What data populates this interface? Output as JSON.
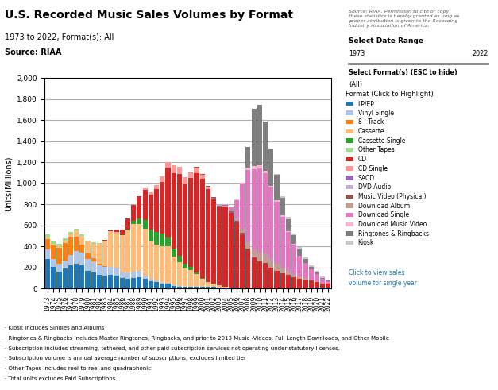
{
  "chart_data": {
    "type": "bar",
    "stacked": true,
    "title": "U.S. Recorded Music Sales Volumes by Format",
    "subtitle": "1973 to 2022, Format(s): All",
    "ylabel": "Units(Millions)",
    "annotations": [
      "Source: RIAA",
      "Source: RIAA. Permission to cite or copy\nthese statistics is hereby granted as long as\nproper attribution is given to the Recording\nIndustry Association of America.",
      "· Kiosk includes Singles and Albums",
      "· Ringtones & Ringbacks includes Master Ringtones, Ringbacks, and prior to 2013 Music -Videos, Full Length Downloads, and Other Mobile",
      "· Subscription includes streaming, tethered, and other paid subscription services not operating under statutory licenses.",
      "· Subscription volume is annual average number of subscriptions; excludes limited tier",
      "· Other Tapes includes reel-to-reel and quadraphonic",
      "· Total units excludes Paid Subscriptions",
      "Select Date Range",
      "1973",
      "2022",
      "Select Format(s) (ESC to hide)",
      "(All)",
      "Format (Click to Highlight)",
      "Click to view sales",
      "volume for single year"
    ],
    "categories": [
      "1973",
      "1974",
      "1975",
      "1976",
      "1977",
      "1978",
      "1979",
      "1980",
      "1981",
      "1982",
      "1983",
      "1984",
      "1985",
      "1986",
      "1987",
      "1988",
      "1989",
      "1990",
      "1991",
      "1992",
      "1993",
      "1994",
      "1995",
      "1996",
      "1997",
      "1998",
      "1999",
      "2000",
      "2001",
      "2002",
      "2003",
      "2004",
      "2005",
      "2006",
      "2007",
      "2008",
      "2009",
      "2010",
      "2011",
      "2012",
      "2013",
      "2014",
      "2015",
      "2016",
      "2017",
      "2018",
      "2019",
      "2020",
      "2021",
      "2022"
    ],
    "series": [
      {
        "name": "LP/EP",
        "color": "#1f77b4",
        "values": [
          282,
          204,
          164,
          190,
          220,
          240,
          220,
          170,
          155,
          130,
          125,
          130,
          120,
          100,
          90,
          100,
          110,
          95,
          69,
          60,
          50,
          45,
          25,
          20,
          15,
          15,
          14,
          16,
          16,
          14,
          12,
          10,
          8,
          6,
          5,
          4,
          3,
          2,
          2,
          2,
          2,
          2,
          2,
          2,
          3,
          5,
          6,
          8,
          10,
          12
        ]
      },
      {
        "name": "Vinyl Single",
        "color": "#aec7e8",
        "values": [
          91,
          80,
          70,
          80,
          100,
          120,
          120,
          110,
          105,
          90,
          80,
          75,
          75,
          60,
          55,
          60,
          55,
          28,
          22,
          20,
          15,
          12,
          8,
          6,
          5,
          4,
          3,
          2,
          1,
          1,
          1,
          1,
          1,
          1,
          1,
          1,
          1,
          1,
          1,
          1,
          1,
          1,
          1,
          1,
          1,
          1,
          1,
          1,
          1,
          1
        ]
      },
      {
        "name": "8 - Track",
        "color": "#ff7f0e",
        "values": [
          100,
          125,
          150,
          162,
          165,
          133,
          76,
          55,
          30,
          20,
          10,
          5,
          2,
          1,
          0,
          0,
          0,
          0,
          0,
          0,
          0,
          0,
          0,
          0,
          0,
          0,
          0,
          0,
          0,
          0,
          0,
          0,
          0,
          0,
          0,
          0,
          0,
          0,
          0,
          0,
          0,
          0,
          0,
          0,
          0,
          0,
          0,
          0,
          0,
          0
        ]
      },
      {
        "name": "Cassette",
        "color": "#ffbb78",
        "values": [
          15,
          15,
          16,
          25,
          36,
          61,
          82,
          110,
          137,
          182,
          237,
          332,
          339,
          345,
          410,
          450,
          446,
          442,
          360,
          336,
          340,
          345,
          272,
          225,
          173,
          159,
          124,
          76,
          45,
          31,
          17,
          5,
          2,
          1,
          1,
          0,
          0,
          0,
          0,
          0,
          0,
          0,
          0,
          0,
          0,
          0,
          0,
          0,
          0,
          0
        ]
      },
      {
        "name": "Cassette Single",
        "color": "#2ca02c",
        "values": [
          0,
          0,
          0,
          0,
          0,
          0,
          0,
          0,
          0,
          0,
          0,
          0,
          0,
          0,
          5,
          35,
          55,
          87,
          110,
          120,
          115,
          81,
          70,
          59,
          42,
          26,
          14,
          8,
          3,
          2,
          1,
          0,
          0,
          0,
          0,
          0,
          0,
          0,
          0,
          0,
          0,
          0,
          0,
          0,
          0,
          0,
          0,
          0,
          0,
          0
        ]
      },
      {
        "name": "Other Tapes",
        "color": "#98df8a",
        "values": [
          25,
          25,
          25,
          20,
          18,
          18,
          15,
          12,
          10,
          8,
          6,
          5,
          4,
          3,
          2,
          2,
          2,
          2,
          1,
          1,
          1,
          1,
          1,
          1,
          0,
          0,
          0,
          0,
          0,
          0,
          0,
          0,
          0,
          0,
          0,
          0,
          0,
          0,
          0,
          0,
          0,
          0,
          0,
          0,
          0,
          0,
          0,
          0,
          0,
          0
        ]
      },
      {
        "name": "CD",
        "color": "#d62728",
        "values": [
          0,
          0,
          0,
          0,
          0,
          0,
          0,
          0,
          0,
          0,
          1,
          5,
          22,
          53,
          102,
          150,
          207,
          287,
          333,
          408,
          495,
          662,
          723,
          779,
          753,
          847,
          939,
          942,
          882,
          803,
          746,
          767,
          705,
          619,
          511,
          368,
          292,
          254,
          240,
          193,
          165,
          140,
          125,
          107,
          89,
          82,
          70,
          56,
          40,
          33
        ]
      },
      {
        "name": "CD Single",
        "color": "#ff9896",
        "values": [
          0,
          0,
          0,
          0,
          0,
          0,
          0,
          0,
          0,
          0,
          0,
          0,
          0,
          0,
          0,
          0,
          0,
          12,
          22,
          35,
          50,
          56,
          73,
          66,
          67,
          56,
          55,
          34,
          17,
          5,
          2,
          2,
          1,
          0,
          0,
          0,
          0,
          0,
          0,
          0,
          0,
          0,
          0,
          0,
          0,
          0,
          0,
          0,
          0,
          0
        ]
      },
      {
        "name": "SACD",
        "color": "#9467bd",
        "values": [
          0,
          0,
          0,
          0,
          0,
          0,
          0,
          0,
          0,
          0,
          0,
          0,
          0,
          0,
          0,
          0,
          0,
          0,
          0,
          0,
          0,
          0,
          0,
          0,
          0,
          0,
          1,
          2,
          3,
          5,
          8,
          10,
          9,
          7,
          5,
          2,
          1,
          0,
          0,
          0,
          0,
          0,
          0,
          0,
          0,
          0,
          0,
          0,
          0,
          0
        ]
      },
      {
        "name": "DVD Audio",
        "color": "#c5b0d5",
        "values": [
          0,
          0,
          0,
          0,
          0,
          0,
          0,
          0,
          0,
          0,
          0,
          0,
          0,
          0,
          0,
          0,
          0,
          0,
          0,
          0,
          0,
          0,
          0,
          0,
          0,
          0,
          0,
          1,
          2,
          3,
          4,
          4,
          3,
          2,
          1,
          0,
          0,
          0,
          0,
          0,
          0,
          0,
          0,
          0,
          0,
          0,
          0,
          0,
          0,
          0
        ]
      },
      {
        "name": "Music Video (Physical)",
        "color": "#8c564b",
        "values": [
          0,
          0,
          0,
          0,
          0,
          0,
          0,
          0,
          0,
          0,
          0,
          0,
          0,
          0,
          0,
          0,
          0,
          0,
          0,
          0,
          0,
          0,
          0,
          0,
          2,
          3,
          4,
          5,
          5,
          5,
          5,
          6,
          6,
          6,
          5,
          3,
          2,
          2,
          2,
          2,
          2,
          2,
          1,
          1,
          1,
          1,
          0,
          0,
          0,
          0
        ]
      },
      {
        "name": "Download Album",
        "color": "#c49c94",
        "values": [
          0,
          0,
          0,
          0,
          0,
          0,
          0,
          0,
          0,
          0,
          0,
          0,
          0,
          0,
          0,
          0,
          0,
          0,
          0,
          0,
          0,
          0,
          0,
          0,
          0,
          0,
          0,
          0,
          0,
          0,
          0,
          0,
          14,
          28,
          42,
          65,
          76,
          86,
          90,
          80,
          64,
          50,
          36,
          24,
          18,
          12,
          8,
          5,
          3,
          2
        ]
      },
      {
        "name": "Download Single",
        "color": "#e377c2",
        "values": [
          0,
          0,
          0,
          0,
          0,
          0,
          0,
          0,
          0,
          0,
          0,
          0,
          0,
          0,
          0,
          0,
          0,
          0,
          0,
          0,
          0,
          0,
          0,
          0,
          0,
          0,
          0,
          0,
          0,
          0,
          0,
          0,
          22,
          170,
          420,
          680,
          760,
          800,
          760,
          680,
          590,
          490,
          375,
          285,
          200,
          140,
          95,
          65,
          40,
          25
        ]
      },
      {
        "name": "Download Music Video",
        "color": "#f7b6d2",
        "values": [
          0,
          0,
          0,
          0,
          0,
          0,
          0,
          0,
          0,
          0,
          0,
          0,
          0,
          0,
          0,
          0,
          0,
          0,
          0,
          0,
          0,
          0,
          0,
          0,
          0,
          0,
          0,
          0,
          0,
          0,
          0,
          0,
          0,
          5,
          15,
          25,
          30,
          30,
          25,
          20,
          15,
          10,
          7,
          5,
          3,
          2,
          1,
          1,
          0,
          0
        ]
      },
      {
        "name": "Ringtones & Ringbacks",
        "color": "#7f7f7f",
        "values": [
          0,
          0,
          0,
          0,
          0,
          0,
          0,
          0,
          0,
          0,
          0,
          0,
          0,
          0,
          0,
          0,
          0,
          0,
          0,
          0,
          0,
          0,
          0,
          0,
          0,
          0,
          0,
          0,
          0,
          0,
          0,
          0,
          0,
          0,
          0,
          200,
          540,
          570,
          470,
          350,
          240,
          165,
          115,
          80,
          55,
          35,
          22,
          14,
          8,
          5
        ]
      },
      {
        "name": "Kiosk",
        "color": "#c7c7c7",
        "values": [
          0,
          0,
          0,
          0,
          0,
          0,
          0,
          0,
          0,
          0,
          0,
          0,
          0,
          0,
          0,
          0,
          0,
          0,
          0,
          0,
          0,
          0,
          0,
          0,
          0,
          0,
          0,
          0,
          0,
          0,
          0,
          0,
          0,
          0,
          0,
          0,
          0,
          0,
          0,
          5,
          10,
          15,
          18,
          20,
          22,
          20,
          18,
          15,
          12,
          10
        ]
      }
    ],
    "ylim": [
      0,
      2000
    ],
    "yticks": [
      0,
      200,
      400,
      600,
      800,
      {
        "value": 1000,
        "label": "1,000"
      },
      {
        "value": 1200,
        "label": "1,200"
      },
      {
        "value": 1400,
        "label": "1,400"
      },
      {
        "value": 1600,
        "label": "1,600"
      },
      {
        "value": 1800,
        "label": "1,800"
      },
      {
        "value": 2000,
        "label": "2,000"
      }
    ],
    "grid": true,
    "legend": "upper left"
  }
}
